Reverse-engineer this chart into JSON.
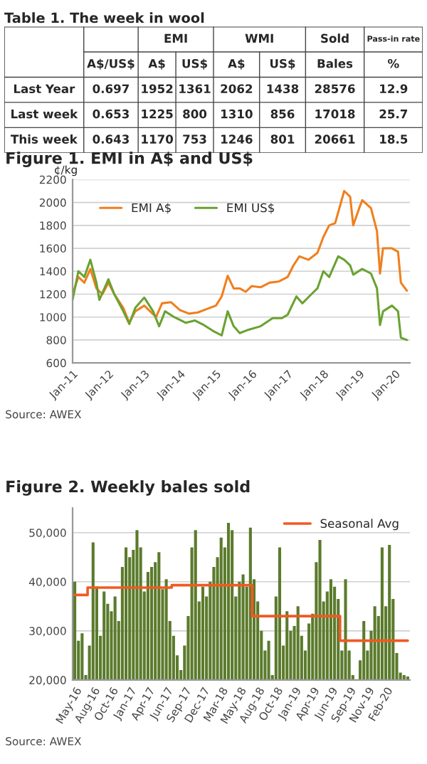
{
  "chart_data": [
    {
      "type": "other",
      "title": "Table 1. The week in wool",
      "annotations": [
        "EMI",
        "WMI",
        "Sold",
        "Pass-in rate",
        "A$/US$",
        "A$",
        "US$",
        "A$",
        "US$",
        "Bales",
        "%",
        "Last Year",
        "0.697",
        "1952",
        "1361",
        "2062",
        "1438",
        "28576",
        "12.9",
        "Last week",
        "0.653",
        "1225",
        "800",
        "1310",
        "856",
        "17018",
        "25.7",
        "This week",
        "0.643",
        "1170",
        "753",
        "1246",
        "801",
        "20661",
        "18.5"
      ]
    },
    {
      "type": "line",
      "title": "Figure 1. EMI in A$ and US$",
      "ylabel": "¢/kg",
      "xlim": [
        "2011-01",
        "2020-06"
      ],
      "xticks": [
        {
          "value": "2011-01",
          "label": "Jan-11"
        },
        {
          "value": "2012-01",
          "label": "Jan-12"
        },
        {
          "value": "2013-01",
          "label": "Jan-13"
        },
        {
          "value": "2014-01",
          "label": "Jan-14"
        },
        {
          "value": "2015-01",
          "label": "Jan-15"
        },
        {
          "value": "2016-01",
          "label": "Jan-16"
        },
        {
          "value": "2017-01",
          "label": "Jan-17"
        },
        {
          "value": "2018-01",
          "label": "Jan-18"
        },
        {
          "value": "2019-01",
          "label": "Jan-19"
        },
        {
          "value": "2020-01",
          "label": "Jan-20"
        }
      ],
      "ylim": [
        600,
        2200
      ],
      "yticks": [
        600,
        800,
        1000,
        1200,
        1400,
        1600,
        1800,
        2000,
        2200
      ],
      "grid": "y",
      "legend": "top left",
      "series": [
        {
          "name": "EMI A$",
          "color": "#f07f1e",
          "x": [
            "2011-01",
            "2011-03",
            "2011-05",
            "2011-07",
            "2011-09",
            "2011-11",
            "2012-01",
            "2012-03",
            "2012-06",
            "2012-08",
            "2012-10",
            "2013-01",
            "2013-03",
            "2013-05",
            "2013-07",
            "2013-10",
            "2014-01",
            "2014-04",
            "2014-07",
            "2014-10",
            "2015-01",
            "2015-03",
            "2015-05",
            "2015-07",
            "2015-09",
            "2015-11",
            "2016-01",
            "2016-04",
            "2016-07",
            "2016-10",
            "2017-01",
            "2017-03",
            "2017-05",
            "2017-08",
            "2017-11",
            "2018-01",
            "2018-03",
            "2018-05",
            "2018-08",
            "2018-10",
            "2018-11",
            "2019-01",
            "2019-02",
            "2019-05",
            "2019-07",
            "2019-08",
            "2019-09",
            "2019-12",
            "2020-02",
            "2020-03",
            "2020-05"
          ],
          "values": [
            1200,
            1350,
            1300,
            1420,
            1250,
            1200,
            1300,
            1200,
            1080,
            950,
            1050,
            1100,
            1050,
            1000,
            1120,
            1130,
            1060,
            1030,
            1040,
            1070,
            1100,
            1180,
            1360,
            1250,
            1250,
            1220,
            1270,
            1260,
            1300,
            1310,
            1350,
            1450,
            1530,
            1500,
            1560,
            1700,
            1800,
            1820,
            2100,
            2050,
            1800,
            1950,
            2020,
            1950,
            1750,
            1380,
            1600,
            1600,
            1570,
            1300,
            1230
          ]
        },
        {
          "name": "EMI US$",
          "color": "#6aa231",
          "x": [
            "2011-01",
            "2011-03",
            "2011-05",
            "2011-07",
            "2011-09",
            "2011-10",
            "2012-01",
            "2012-03",
            "2012-06",
            "2012-08",
            "2012-10",
            "2013-01",
            "2013-04",
            "2013-06",
            "2013-08",
            "2013-11",
            "2014-03",
            "2014-06",
            "2014-09",
            "2014-12",
            "2015-03",
            "2015-05",
            "2015-07",
            "2015-09",
            "2015-12",
            "2016-04",
            "2016-08",
            "2016-11",
            "2017-01",
            "2017-04",
            "2017-06",
            "2017-09",
            "2017-11",
            "2018-01",
            "2018-03",
            "2018-06",
            "2018-08",
            "2018-10",
            "2018-11",
            "2019-02",
            "2019-05",
            "2019-07",
            "2019-08",
            "2019-09",
            "2019-12",
            "2020-02",
            "2020-03",
            "2020-05"
          ],
          "values": [
            1150,
            1400,
            1350,
            1500,
            1300,
            1150,
            1330,
            1200,
            1050,
            940,
            1080,
            1170,
            1050,
            920,
            1050,
            1000,
            950,
            970,
            930,
            880,
            840,
            1050,
            920,
            860,
            890,
            920,
            990,
            990,
            1020,
            1180,
            1120,
            1200,
            1250,
            1400,
            1350,
            1530,
            1500,
            1450,
            1370,
            1420,
            1380,
            1250,
            930,
            1050,
            1100,
            1050,
            820,
            800
          ]
        }
      ],
      "annotations": [
        "Source: AWEX"
      ]
    },
    {
      "type": "bar",
      "title": "Figure 2. Weekly bales sold",
      "categories": [
        "May-16",
        null,
        null,
        null,
        null,
        "Aug-16",
        null,
        null,
        null,
        null,
        "Oct-16",
        null,
        null,
        null,
        null,
        "Jan-17",
        null,
        null,
        null,
        null,
        "Apr-17",
        null,
        null,
        null,
        null,
        "Jun-17",
        null,
        null,
        null,
        null,
        "Sep-17",
        null,
        null,
        null,
        null,
        "Dec-17",
        null,
        null,
        null,
        null,
        "Mar-18",
        null,
        null,
        null,
        null,
        "May-18",
        null,
        null,
        null,
        null,
        "Aug-18",
        null,
        null,
        null,
        null,
        "Oct-18",
        null,
        null,
        null,
        null,
        "Jan-19",
        null,
        null,
        null,
        null,
        "Apr-19",
        null,
        null,
        null,
        null,
        "Jun-19",
        null,
        null,
        null,
        null,
        "Sep-19",
        null,
        null,
        null,
        null,
        "Nov-19",
        null,
        null,
        null,
        null,
        "Feb-20",
        null,
        null,
        null,
        null,
        null,
        null
      ],
      "ylim": [
        20000,
        55000
      ],
      "yticks": [
        {
          "value": 20000,
          "label": "20,000"
        },
        {
          "value": 30000,
          "label": "30,000"
        },
        {
          "value": 40000,
          "label": "40,000"
        },
        {
          "value": 50000,
          "label": "50,000"
        }
      ],
      "grid": "y",
      "legend": "top right",
      "series": [
        {
          "type": "bar",
          "color": "#5b7b2c",
          "values": [
            40000,
            28000,
            29500,
            21000,
            27000,
            48000,
            39000,
            29000,
            38000,
            35500,
            34000,
            37000,
            32000,
            43000,
            47000,
            45000,
            46500,
            50500,
            47000,
            38000,
            42000,
            43000,
            44000,
            46000,
            38500,
            40500,
            32000,
            29000,
            25000,
            22000,
            27000,
            33000,
            47000,
            50500,
            36000,
            39000,
            37000,
            40000,
            43000,
            45000,
            49000,
            47000,
            52000,
            50500,
            37000,
            40000,
            41500,
            39000,
            51000,
            40500,
            36000,
            30000,
            26000,
            28000,
            21000,
            37000,
            47000,
            27000,
            34000,
            30000,
            31000,
            35000,
            29000,
            26000,
            31500,
            33500,
            44000,
            48500,
            36000,
            38000,
            40500,
            39000,
            36500,
            26000,
            40500,
            26000,
            21000,
            20000,
            24000,
            32000,
            26000,
            30000,
            35000,
            33000,
            47000,
            35000,
            47500,
            36500,
            25500,
            21500,
            21000,
            20700
          ]
        },
        {
          "type": "step",
          "name": "Seasonal Avg",
          "color": "#f05a22",
          "values": [
            37300,
            37300,
            37300,
            37300,
            38800,
            38800,
            38800,
            38800,
            38800,
            38800,
            38800,
            38800,
            38800,
            38800,
            38800,
            38800,
            38800,
            38800,
            38800,
            38800,
            38800,
            38800,
            38800,
            38800,
            38800,
            38800,
            38800,
            39300,
            39300,
            39300,
            39300,
            39300,
            39300,
            39300,
            39300,
            39300,
            39300,
            39300,
            39300,
            39300,
            39300,
            39300,
            39300,
            39300,
            39300,
            39300,
            39300,
            39300,
            39300,
            33000,
            33000,
            33000,
            33000,
            33000,
            33000,
            33000,
            33000,
            33000,
            33000,
            33000,
            33000,
            33000,
            33000,
            33000,
            33000,
            33000,
            33000,
            33000,
            33000,
            33000,
            33000,
            33000,
            33000,
            28000,
            28000,
            28000,
            28000,
            28000,
            28000,
            28000,
            28000,
            28000,
            28000,
            28000,
            28000,
            28000,
            28000,
            28000,
            28000,
            28000,
            28000,
            28000
          ]
        }
      ],
      "annotations": [
        "Source: AWEX"
      ]
    }
  ]
}
